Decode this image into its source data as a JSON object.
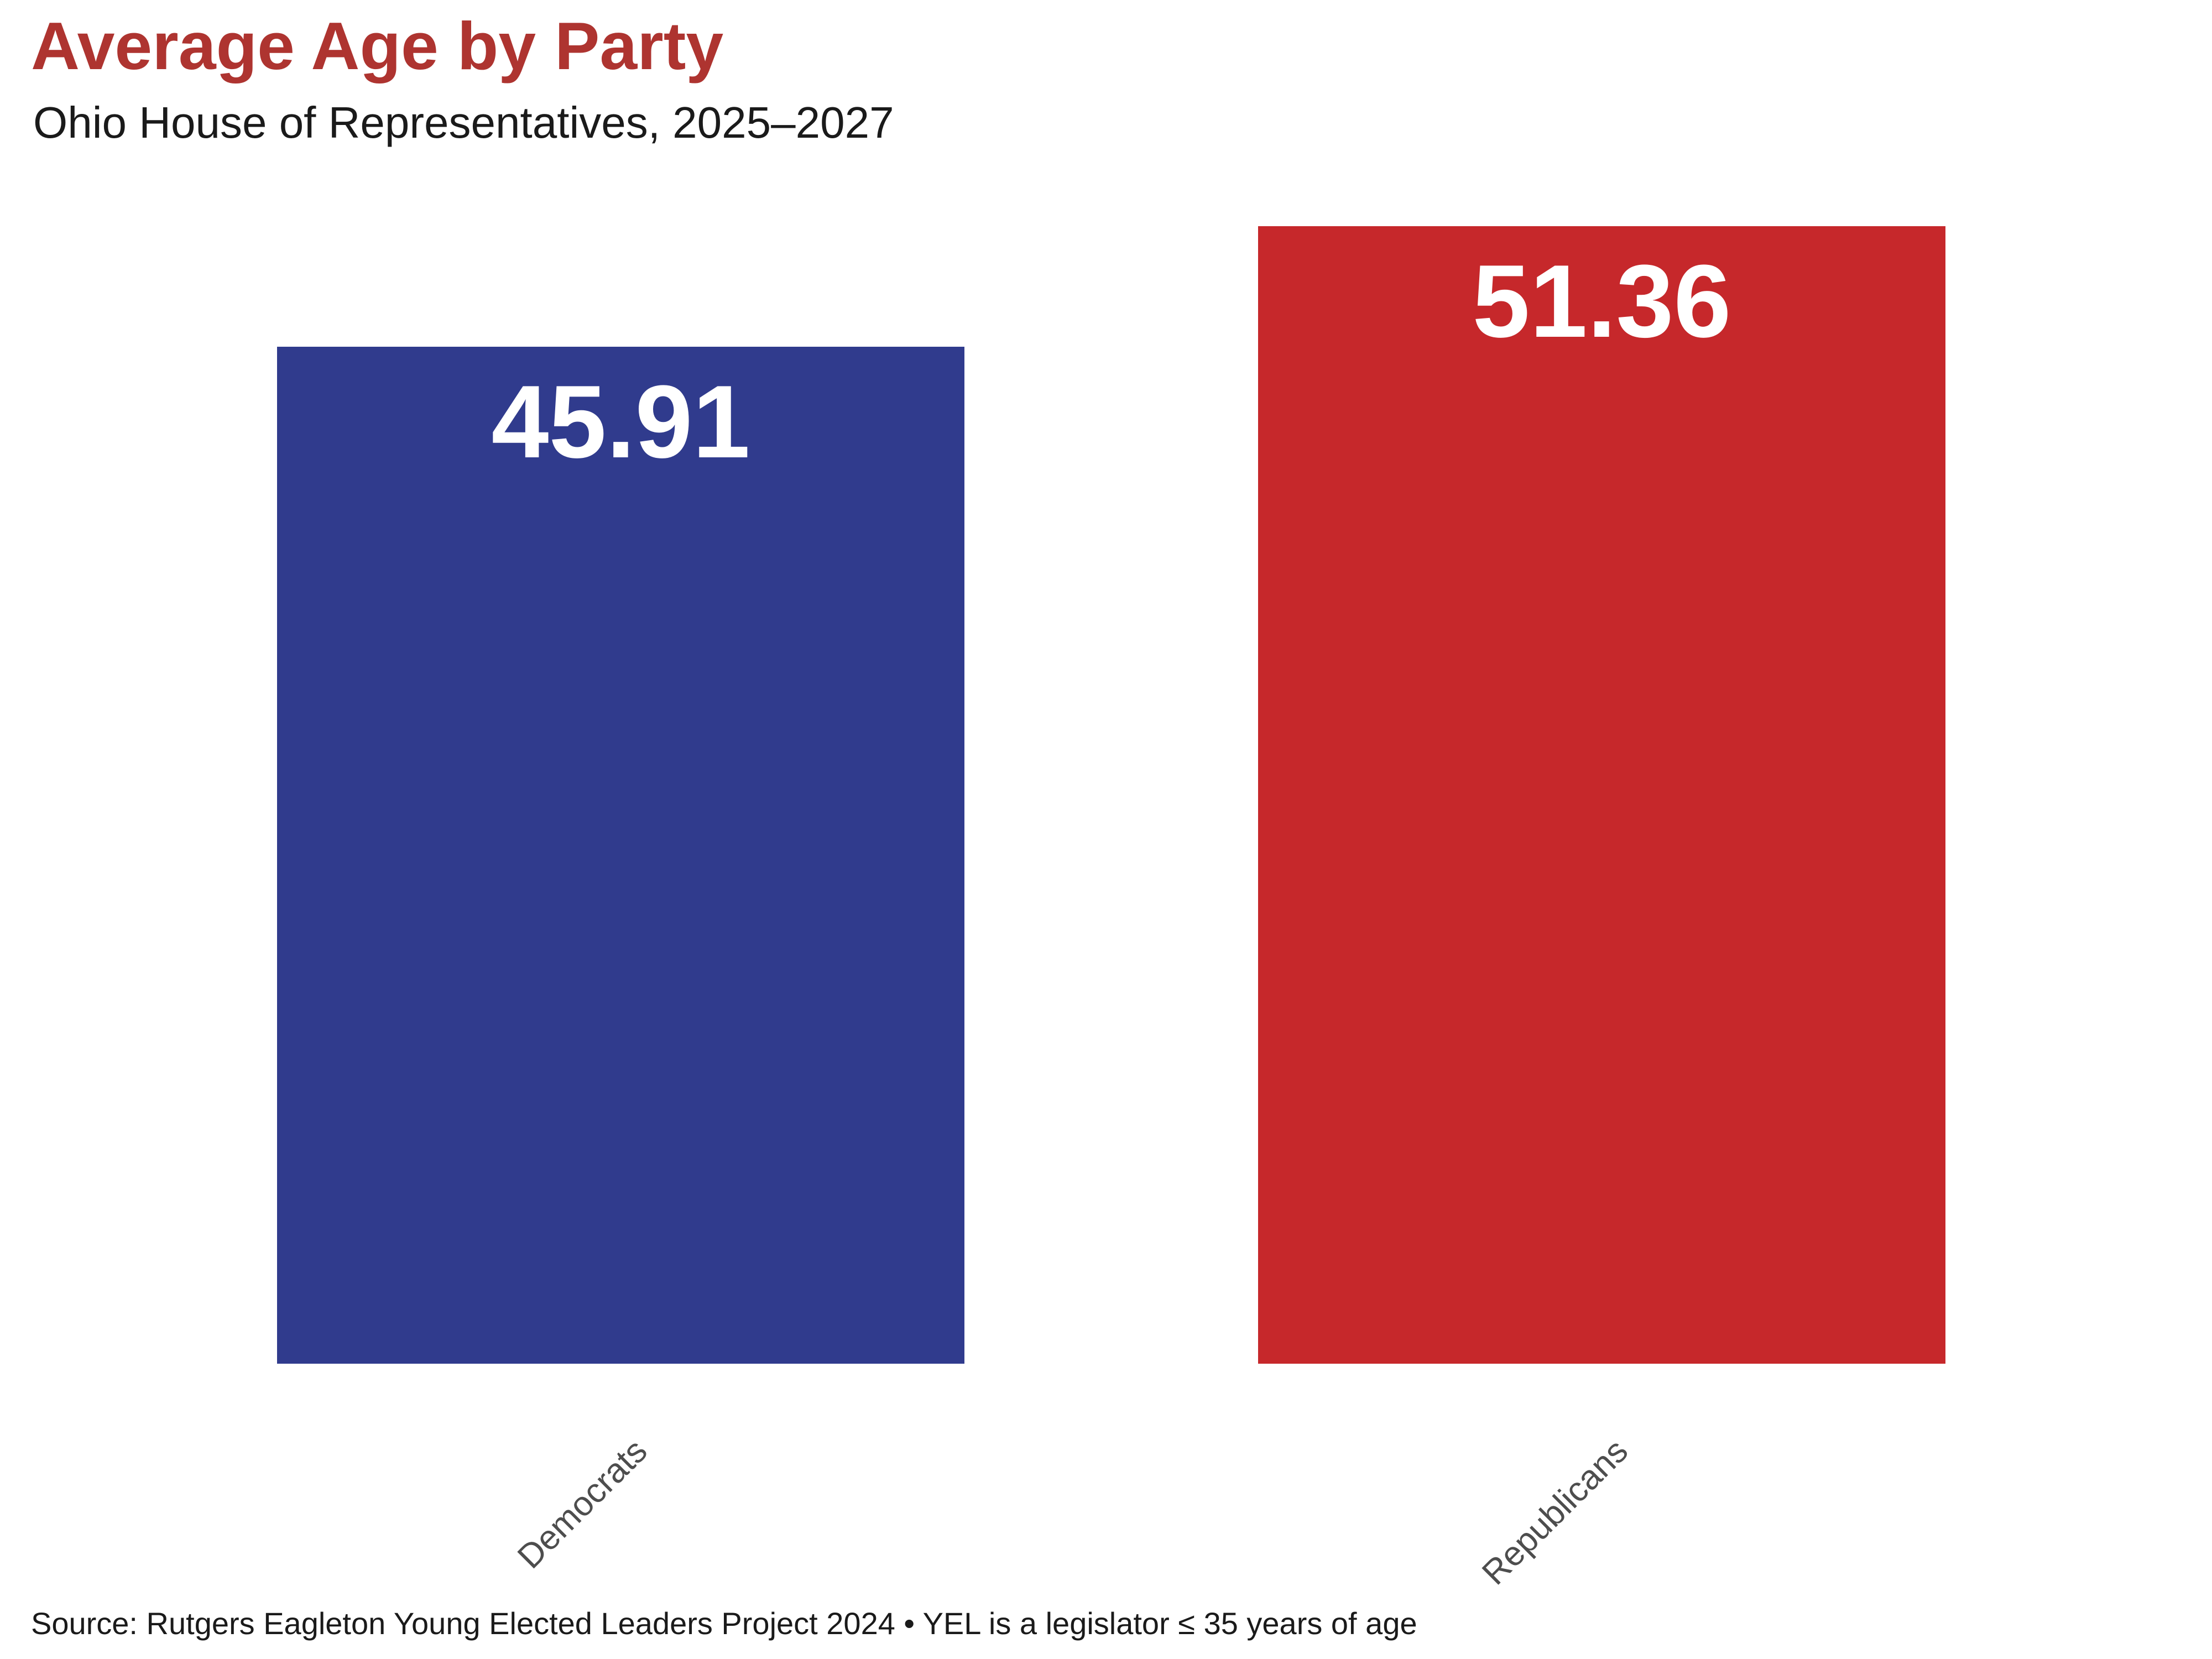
{
  "header": {
    "title": "Average Age by Party",
    "subtitle": "Ohio House of Representatives, 2025–2027"
  },
  "footer": {
    "source_note": "Source: Rutgers Eagleton Young Elected Leaders Project 2024 • YEL is a legislator ≤ 35 years of age"
  },
  "colors": {
    "title_text": "#AE3430",
    "subtitle_text": "#1A1A1A",
    "democrat_bar": "#303B8D",
    "republican_bar": "#C6282B",
    "value_label_text": "#FFFFFF",
    "tick_label_text": "#4D4D4D",
    "background": "#FFFFFF"
  },
  "chart_data": {
    "type": "bar",
    "title": "Average Age by Party",
    "subtitle": "Ohio House of Representatives, 2025–2027",
    "categories": [
      "Democrats",
      "Republicans"
    ],
    "values": [
      45.91,
      51.36
    ],
    "value_labels": [
      "45.91",
      "51.36"
    ],
    "bar_colors": [
      "#303B8D",
      "#C6282B"
    ],
    "xlabel": "",
    "ylabel": "",
    "ylim": [
      0,
      51.36
    ],
    "grid": false,
    "legend": false,
    "axes_visible": false,
    "value_label_position": "inside-top",
    "tick_rotation_deg": 45,
    "source_note": "Source: Rutgers Eagleton Young Elected Leaders Project 2024 • YEL is a legislator ≤ 35 years of age"
  }
}
